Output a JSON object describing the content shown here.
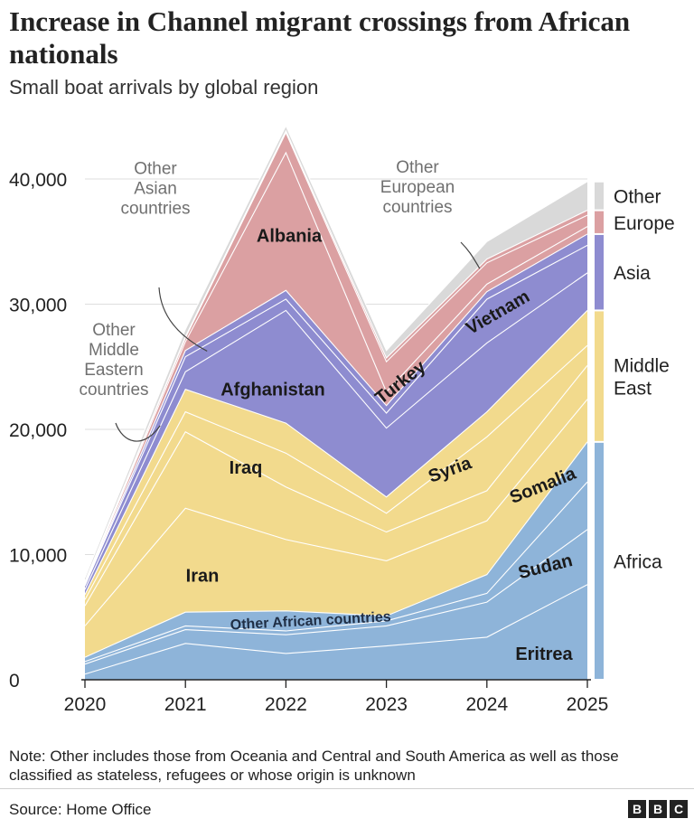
{
  "header": {
    "title": "Increase in Channel migrant crossings from African nationals",
    "subtitle": "Small boat arrivals by global region"
  },
  "footer": {
    "note": "Note: Other includes those from Oceania and Central and South America as well as those classified as stateless, refugees or whose origin is unknown",
    "source": "Source: Home Office",
    "logo_letters": [
      "B",
      "B",
      "C"
    ]
  },
  "chart_data": {
    "type": "area",
    "stacked": true,
    "x": [
      "2020",
      "2021",
      "2022",
      "2023",
      "2024",
      "2025"
    ],
    "y_ticks": [
      "0",
      "10,000",
      "20,000",
      "30,000",
      "40,000"
    ],
    "ylim": [
      0,
      45000
    ],
    "grid": true,
    "series": [
      {
        "name": "Eritrea",
        "region": "Africa",
        "values": [
          450,
          2900,
          2100,
          2700,
          3400,
          7600
        ],
        "color": "#8eb4d9"
      },
      {
        "name": "Sudan",
        "region": "Africa",
        "values": [
          800,
          1100,
          1500,
          1600,
          2800,
          4400
        ],
        "color": "#8eb4d9"
      },
      {
        "name": "Other African countries",
        "region": "Africa",
        "values": [
          200,
          300,
          300,
          400,
          700,
          3800
        ],
        "color": "#8eb4d9"
      },
      {
        "name": "Somalia",
        "region": "Africa",
        "values": [
          350,
          1100,
          1600,
          400,
          1500,
          3200
        ],
        "color": "#8eb4d9"
      },
      {
        "name": "Iran",
        "region": "Middle East",
        "values": [
          2500,
          8300,
          5700,
          4400,
          4300,
          3400
        ],
        "color": "#f2da8d"
      },
      {
        "name": "Iraq",
        "region": "Middle East",
        "values": [
          1600,
          6100,
          4200,
          2300,
          2400,
          2700
        ],
        "color": "#f2da8d"
      },
      {
        "name": "Syria",
        "region": "Middle East",
        "values": [
          500,
          1600,
          2700,
          1500,
          4300,
          1600
        ],
        "color": "#f2da8d"
      },
      {
        "name": "Other Middle Eastern countries",
        "region": "Middle East",
        "values": [
          400,
          1800,
          2400,
          1300,
          2000,
          2800
        ],
        "color": "#f2da8d"
      },
      {
        "name": "Afghanistan",
        "region": "Asia",
        "values": [
          400,
          1400,
          9000,
          5500,
          5500,
          3000
        ],
        "color": "#8e8cd0"
      },
      {
        "name": "Vietnam",
        "region": "Asia",
        "values": [
          300,
          1200,
          900,
          1200,
          3500,
          2200
        ],
        "color": "#8e8cd0"
      },
      {
        "name": "Other Asian countries",
        "region": "Asia",
        "values": [
          100,
          500,
          700,
          600,
          600,
          900
        ],
        "color": "#8e8cd0"
      },
      {
        "name": "Albania",
        "region": "Europe",
        "values": [
          100,
          700,
          11000,
          1100,
          600,
          600
        ],
        "color": "#dba0a2"
      },
      {
        "name": "Turkey",
        "region": "Europe",
        "values": [
          100,
          300,
          1600,
          2400,
          1700,
          900
        ],
        "color": "#dba0a2"
      },
      {
        "name": "Other European countries",
        "region": "Europe",
        "values": [
          50,
          100,
          150,
          300,
          300,
          400
        ],
        "color": "#dba0a2"
      },
      {
        "name": "Other",
        "region": "Other",
        "values": [
          300,
          600,
          400,
          600,
          1400,
          2300
        ],
        "color": "#d9d9d9"
      }
    ],
    "regions": [
      {
        "name": "Africa",
        "color": "#8eb4d9"
      },
      {
        "name": "Middle East",
        "color": "#f2da8d"
      },
      {
        "name": "Asia",
        "color": "#8e8cd0"
      },
      {
        "name": "Europe",
        "color": "#dba0a2"
      },
      {
        "name": "Other",
        "color": "#d9d9d9"
      }
    ],
    "region_labels": [
      "Africa",
      "Middle East",
      "Asia",
      "Europe",
      "Other"
    ],
    "series_labels": {
      "Eritrea": "Eritrea",
      "Sudan": "Sudan",
      "Other African countries": "Other African countries",
      "Somalia": "Somalia",
      "Iran": "Iran",
      "Iraq": "Iraq",
      "Syria": "Syria",
      "Afghanistan": "Afghanistan",
      "Vietnam": "Vietnam",
      "Albania": "Albania",
      "Turkey": "Turkey"
    },
    "annotations": [
      {
        "series": "Other Asian countries",
        "text": [
          "Other",
          "Asian",
          "countries"
        ]
      },
      {
        "series": "Other Middle Eastern countries",
        "text": [
          "Other",
          "Middle",
          "Eastern",
          "countries"
        ]
      },
      {
        "series": "Other European countries",
        "text": [
          "Other",
          "European",
          "countries"
        ]
      }
    ]
  }
}
